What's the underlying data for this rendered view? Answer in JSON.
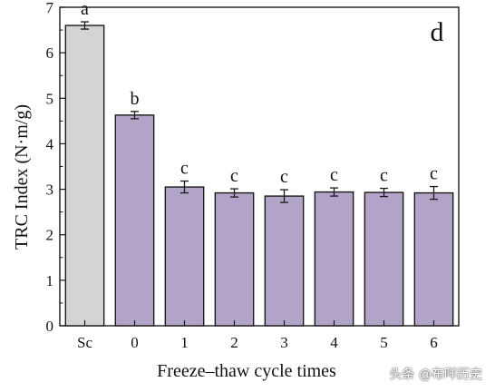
{
  "chart_data": {
    "type": "bar",
    "title": "",
    "xlabel": "Freeze–thaw cycle times",
    "ylabel": "TRC Index (N·m/g)",
    "ylim": [
      0,
      7
    ],
    "yticks": [
      0,
      1,
      2,
      3,
      4,
      5,
      6,
      7
    ],
    "categories": [
      "Sc",
      "0",
      "1",
      "2",
      "3",
      "4",
      "5",
      "6"
    ],
    "values": [
      6.6,
      4.63,
      3.05,
      2.92,
      2.85,
      2.94,
      2.93,
      2.92
    ],
    "errors": [
      0.08,
      0.08,
      0.13,
      0.09,
      0.14,
      0.09,
      0.09,
      0.14
    ],
    "significance": [
      "a",
      "b",
      "c",
      "c",
      "c",
      "c",
      "c",
      "c"
    ],
    "panel_label": "d",
    "grid": false,
    "legend": "none",
    "colors": {
      "control_bar": "#d4d4d4",
      "treatment_bar": "#b2a4c8",
      "bar_stroke": "#1a1a1a",
      "axis": "#1a1a1a"
    }
  },
  "watermark": "头条 @布咩历史"
}
